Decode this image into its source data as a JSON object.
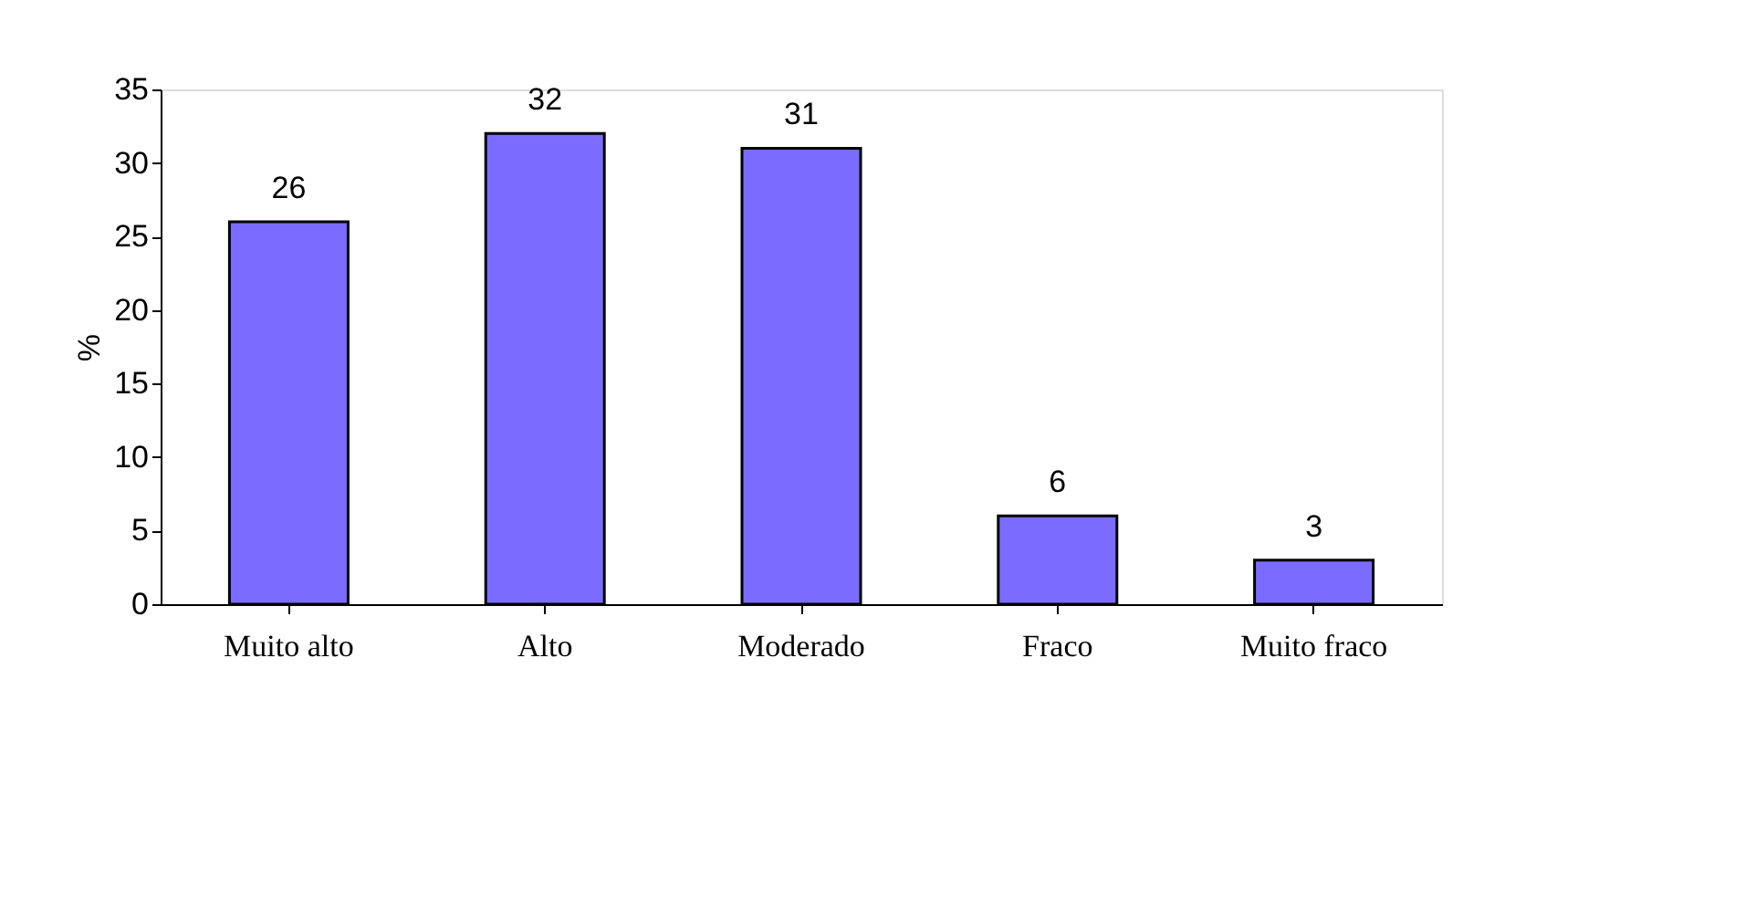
{
  "chart_data": {
    "type": "bar",
    "ylabel": "%",
    "categories": [
      "Muito alto",
      "Alto",
      "Moderado",
      "Fraco",
      "Muito fraco"
    ],
    "values": [
      26,
      32,
      31,
      6,
      3
    ],
    "color": "#7b6cff",
    "ylim": [
      0,
      35
    ],
    "yticks": [
      0,
      5,
      10,
      15,
      20,
      25,
      30,
      35
    ],
    "grid": false,
    "data_labels": true
  }
}
